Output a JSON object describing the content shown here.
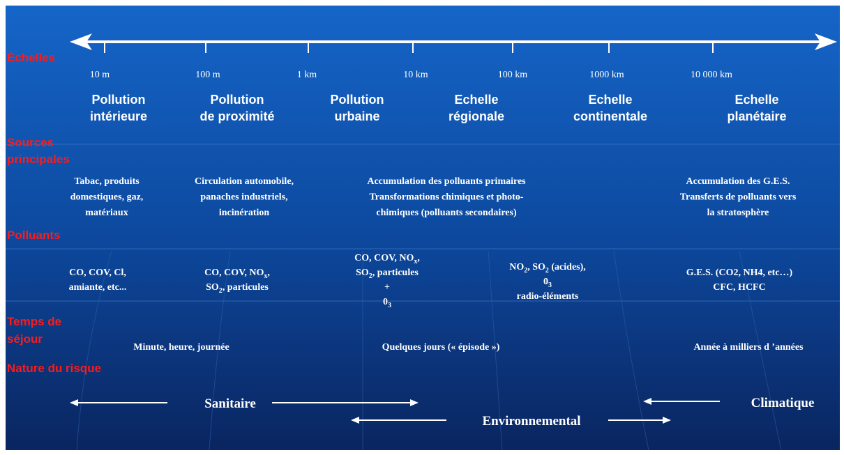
{
  "row_labels": [
    [
      "Échelles"
    ],
    [
      "Sources",
      "principales"
    ],
    [
      "Polluants"
    ],
    [
      "Temps de",
      "séjour"
    ],
    [
      "Nature du risque"
    ]
  ],
  "scales": [
    "10 m",
    "100 m",
    "1 km",
    "10 km",
    "100 km",
    "1000 km",
    "10 000 km"
  ],
  "domains": [
    [
      "Pollution",
      "intérieure"
    ],
    [
      "Pollution",
      "de proximité"
    ],
    [
      "Pollution",
      "urbaine"
    ],
    [
      "Echelle",
      "régionale"
    ],
    [
      "Echelle",
      "continentale"
    ],
    [
      "Echelle",
      "planétaire"
    ]
  ],
  "sources": [
    [
      "Tabac, produits",
      "domestiques, gaz,",
      "matériaux"
    ],
    [
      "Circulation automobile,",
      "panaches industriels,",
      "incinération"
    ],
    [
      "Accumulation des polluants primaires",
      "Transformations chimiques et  photo-",
      "chimiques (polluants secondaires)"
    ],
    [
      "Accumulation des G.E.S.",
      "Transferts de polluants vers",
      "la stratosphère"
    ]
  ],
  "pollutants": [
    [
      [
        "CO, COV, Cl,"
      ],
      [
        "amiante, etc..."
      ]
    ],
    [
      [
        "CO, COV, NO",
        "x",
        ","
      ],
      [
        "SO",
        "2",
        ", particules"
      ]
    ],
    [
      [
        "CO, COV, NO",
        "x",
        ","
      ],
      [
        "SO",
        "2",
        ", particules"
      ],
      [
        "+"
      ],
      [
        "0",
        "3"
      ]
    ],
    [
      [
        "NO",
        "2",
        ", SO",
        "2",
        " (acides),"
      ],
      [
        "0",
        "3"
      ],
      [
        "radio-éléments"
      ]
    ],
    [
      [
        "G.E.S. (CO2, NH4, etc…)"
      ],
      [
        "CFC, HCFC"
      ]
    ]
  ],
  "residence": [
    "Minute, heure, journée",
    "Quelques jours (« épisode »)",
    "Année à milliers d ’années"
  ],
  "risks": [
    "Sanitaire",
    "Environnemental",
    "Climatique"
  ]
}
